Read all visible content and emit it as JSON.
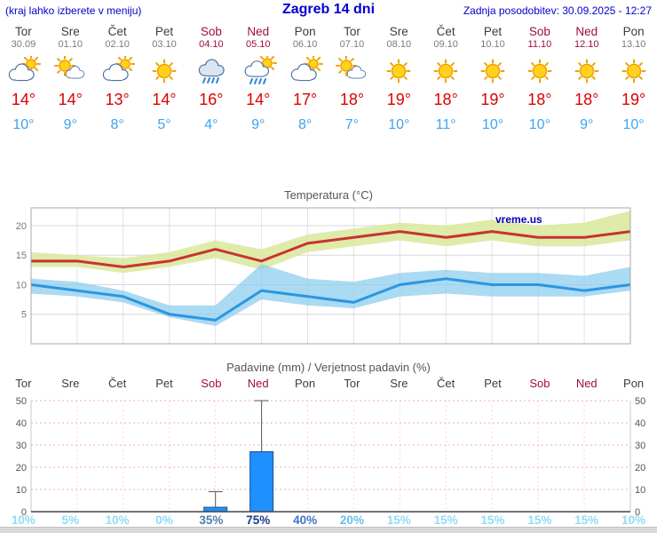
{
  "header": {
    "left": "(kraj lahko izberete v meniju)",
    "title": "Zagreb 14 dni",
    "right": "Zadnja posodobitev: 30.09.2025 - 12:27"
  },
  "colors": {
    "accent_blue": "#0000cc",
    "weekend_red": "#9f0d3f",
    "max_temp_red": "#dd0000",
    "min_temp_blue": "#3ea4f2",
    "temp_line_red": "#c83232",
    "temp_line_blue": "#2b96e0",
    "temp_band_green": "#dce9a0",
    "temp_band_blue": "#8fcdef",
    "bar_blue": "#1e90ff",
    "grid_pink": "#f0a8b8"
  },
  "days": [
    {
      "name": "Tor",
      "date": "30.09",
      "icon": "cloud-sun",
      "tmax": "14°",
      "tmin": "10°",
      "weekend": false
    },
    {
      "name": "Sre",
      "date": "01.10",
      "icon": "sun-cloud",
      "tmax": "14°",
      "tmin": "9°",
      "weekend": false
    },
    {
      "name": "Čet",
      "date": "02.10",
      "icon": "cloud-sun",
      "tmax": "13°",
      "tmin": "8°",
      "weekend": false
    },
    {
      "name": "Pet",
      "date": "03.10",
      "icon": "sun",
      "tmax": "14°",
      "tmin": "5°",
      "weekend": false
    },
    {
      "name": "Sob",
      "date": "04.10",
      "icon": "rain",
      "tmax": "16°",
      "tmin": "4°",
      "weekend": true
    },
    {
      "name": "Ned",
      "date": "05.10",
      "icon": "rain-sun",
      "tmax": "14°",
      "tmin": "9°",
      "weekend": true
    },
    {
      "name": "Pon",
      "date": "06.10",
      "icon": "cloud-sun",
      "tmax": "17°",
      "tmin": "8°",
      "weekend": false
    },
    {
      "name": "Tor",
      "date": "07.10",
      "icon": "sun-cloud",
      "tmax": "18°",
      "tmin": "7°",
      "weekend": false
    },
    {
      "name": "Sre",
      "date": "08.10",
      "icon": "sun",
      "tmax": "19°",
      "tmin": "10°",
      "weekend": false
    },
    {
      "name": "Čet",
      "date": "09.10",
      "icon": "sun",
      "tmax": "18°",
      "tmin": "11°",
      "weekend": false
    },
    {
      "name": "Pet",
      "date": "10.10",
      "icon": "sun",
      "tmax": "19°",
      "tmin": "10°",
      "weekend": false
    },
    {
      "name": "Sob",
      "date": "11.10",
      "icon": "sun",
      "tmax": "18°",
      "tmin": "10°",
      "weekend": true
    },
    {
      "name": "Ned",
      "date": "12.10",
      "icon": "sun",
      "tmax": "18°",
      "tmin": "9°",
      "weekend": true
    },
    {
      "name": "Pon",
      "date": "13.10",
      "icon": "sun",
      "tmax": "19°",
      "tmin": "10°",
      "weekend": false
    }
  ],
  "chart_data": [
    {
      "type": "line",
      "title": "Temperatura (°C)",
      "watermark": "vreme.us",
      "categories": [
        "Tor 30.09",
        "Sre 01.10",
        "Čet 02.10",
        "Pet 03.10",
        "Sob 04.10",
        "Ned 05.10",
        "Pon 06.10",
        "Tor 07.10",
        "Sre 08.10",
        "Čet 09.10",
        "Pet 10.10",
        "Sob 11.10",
        "Ned 12.10",
        "Pon 13.10"
      ],
      "ylim": [
        0,
        23
      ],
      "yticks": [
        5,
        10,
        15,
        20
      ],
      "series": [
        {
          "name": "max_temp",
          "values": [
            14,
            14,
            13,
            14,
            16,
            14,
            17,
            18,
            19,
            18,
            19,
            18,
            18,
            19
          ]
        },
        {
          "name": "min_temp",
          "values": [
            10,
            9,
            8,
            5,
            4,
            9,
            8,
            7,
            10,
            11,
            10,
            10,
            9,
            10
          ]
        },
        {
          "name": "max_band_upper",
          "values": [
            15.5,
            15,
            14.5,
            15.5,
            17.5,
            16,
            18.5,
            19.5,
            20.5,
            20,
            21,
            20,
            20.5,
            22.5
          ]
        },
        {
          "name": "max_band_lower",
          "values": [
            13,
            13,
            12,
            13,
            14.5,
            12.5,
            15.5,
            16.5,
            17.5,
            16.5,
            17.5,
            16.5,
            16.5,
            17.5
          ]
        },
        {
          "name": "min_band_upper",
          "values": [
            11,
            10.5,
            9,
            6.5,
            6.5,
            13.5,
            11,
            10.5,
            12,
            12.5,
            12,
            12,
            11.5,
            13
          ]
        },
        {
          "name": "min_band_lower",
          "values": [
            8.5,
            8,
            7,
            4.5,
            3,
            7.5,
            6.5,
            6,
            8,
            8.5,
            8,
            8,
            8,
            9
          ]
        }
      ]
    },
    {
      "type": "bar",
      "title": "Padavine (mm) / Verjetnost padavin (%)",
      "categories": [
        "Tor",
        "Sre",
        "Čet",
        "Pet",
        "Sob",
        "Ned",
        "Pon",
        "Tor",
        "Sre",
        "Čet",
        "Pet",
        "Sob",
        "Ned",
        "Pon"
      ],
      "ylim": [
        0,
        50
      ],
      "yticks": [
        0,
        10,
        20,
        30,
        40,
        50
      ],
      "values": [
        0,
        0,
        0,
        0,
        2,
        27,
        0,
        0,
        0,
        0,
        0,
        0,
        0,
        0
      ],
      "whiskers": [
        0,
        0,
        0,
        0,
        9,
        50,
        0,
        0,
        0,
        0,
        0,
        0,
        0,
        0
      ],
      "probabilities": [
        {
          "label": "10%",
          "color": "#8fdcf4"
        },
        {
          "label": "5%",
          "color": "#8fdcf4"
        },
        {
          "label": "10%",
          "color": "#8fdcf4"
        },
        {
          "label": "0%",
          "color": "#8fdcf4"
        },
        {
          "label": "35%",
          "color": "#4d7fae"
        },
        {
          "label": "75%",
          "color": "#1c3b8e"
        },
        {
          "label": "40%",
          "color": "#3f74c9"
        },
        {
          "label": "20%",
          "color": "#66c2ea"
        },
        {
          "label": "15%",
          "color": "#8fdcf4"
        },
        {
          "label": "15%",
          "color": "#8fdcf4"
        },
        {
          "label": "15%",
          "color": "#8fdcf4"
        },
        {
          "label": "15%",
          "color": "#8fdcf4"
        },
        {
          "label": "15%",
          "color": "#8fdcf4"
        },
        {
          "label": "10%",
          "color": "#8fdcf4"
        }
      ]
    }
  ]
}
